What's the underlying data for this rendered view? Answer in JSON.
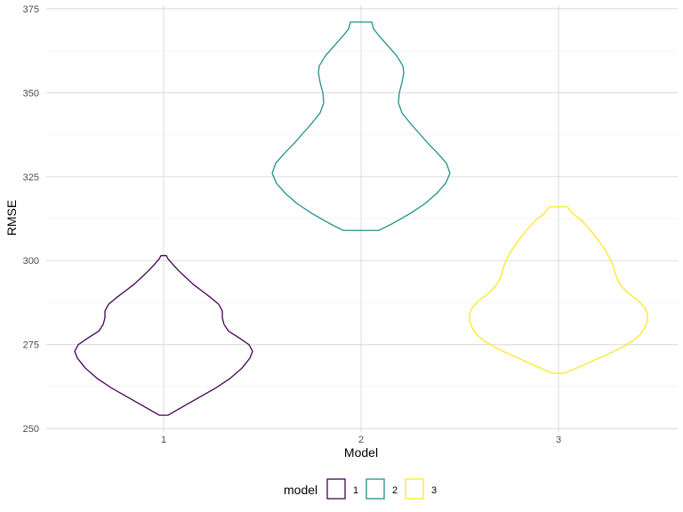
{
  "chart_data": {
    "type": "violin",
    "xlabel": "Model",
    "ylabel": "RMSE",
    "ylim": [
      249,
      376
    ],
    "y_ticks": [
      250,
      275,
      300,
      325,
      350,
      375
    ],
    "y_tick_labels": [
      "250",
      "275",
      "300",
      "325",
      "350",
      "375"
    ],
    "categories": [
      "1",
      "2",
      "3"
    ],
    "grid": true,
    "legend": {
      "title": "model",
      "position": "bottom",
      "entries": [
        "1",
        "2",
        "3"
      ]
    },
    "series": [
      {
        "name": "1",
        "color": "#440154",
        "min": 254,
        "max": 301.5,
        "density_profile": [
          [
            254,
            0.05
          ],
          [
            256,
            0.18
          ],
          [
            259,
            0.38
          ],
          [
            262,
            0.58
          ],
          [
            265,
            0.75
          ],
          [
            268,
            0.88
          ],
          [
            271,
            0.97
          ],
          [
            273,
            1.0
          ],
          [
            275,
            0.96
          ],
          [
            277,
            0.85
          ],
          [
            279,
            0.73
          ],
          [
            281,
            0.68
          ],
          [
            283,
            0.66
          ],
          [
            285,
            0.66
          ],
          [
            287,
            0.62
          ],
          [
            289,
            0.53
          ],
          [
            291,
            0.43
          ],
          [
            293,
            0.33
          ],
          [
            295,
            0.25
          ],
          [
            297,
            0.17
          ],
          [
            299,
            0.1
          ],
          [
            300.5,
            0.05
          ],
          [
            301.5,
            0.03
          ]
        ]
      },
      {
        "name": "2",
        "color": "#21908C",
        "min": 309,
        "max": 371,
        "density_profile": [
          [
            309,
            0.2
          ],
          [
            311,
            0.35
          ],
          [
            314,
            0.55
          ],
          [
            317,
            0.72
          ],
          [
            320,
            0.85
          ],
          [
            323,
            0.95
          ],
          [
            326,
            1.0
          ],
          [
            329,
            0.96
          ],
          [
            332,
            0.86
          ],
          [
            335,
            0.75
          ],
          [
            338,
            0.65
          ],
          [
            341,
            0.55
          ],
          [
            344,
            0.46
          ],
          [
            347,
            0.42
          ],
          [
            350,
            0.43
          ],
          [
            353,
            0.46
          ],
          [
            356,
            0.48
          ],
          [
            358,
            0.47
          ],
          [
            361,
            0.4
          ],
          [
            364,
            0.3
          ],
          [
            367,
            0.2
          ],
          [
            369,
            0.14
          ],
          [
            371,
            0.12
          ]
        ]
      },
      {
        "name": "3",
        "color": "#FDE725",
        "min": 266.5,
        "max": 316,
        "density_profile": [
          [
            266.5,
            0.07
          ],
          [
            268,
            0.2
          ],
          [
            270,
            0.37
          ],
          [
            272,
            0.54
          ],
          [
            274,
            0.7
          ],
          [
            276,
            0.83
          ],
          [
            278,
            0.92
          ],
          [
            280,
            0.97
          ],
          [
            282,
            1.0
          ],
          [
            284,
            1.0
          ],
          [
            286,
            0.97
          ],
          [
            288,
            0.9
          ],
          [
            290,
            0.8
          ],
          [
            292,
            0.72
          ],
          [
            294,
            0.67
          ],
          [
            296,
            0.64
          ],
          [
            298,
            0.62
          ],
          [
            300,
            0.59
          ],
          [
            303,
            0.53
          ],
          [
            306,
            0.45
          ],
          [
            309,
            0.36
          ],
          [
            312,
            0.26
          ],
          [
            314,
            0.16
          ],
          [
            316,
            0.1
          ]
        ]
      }
    ]
  }
}
